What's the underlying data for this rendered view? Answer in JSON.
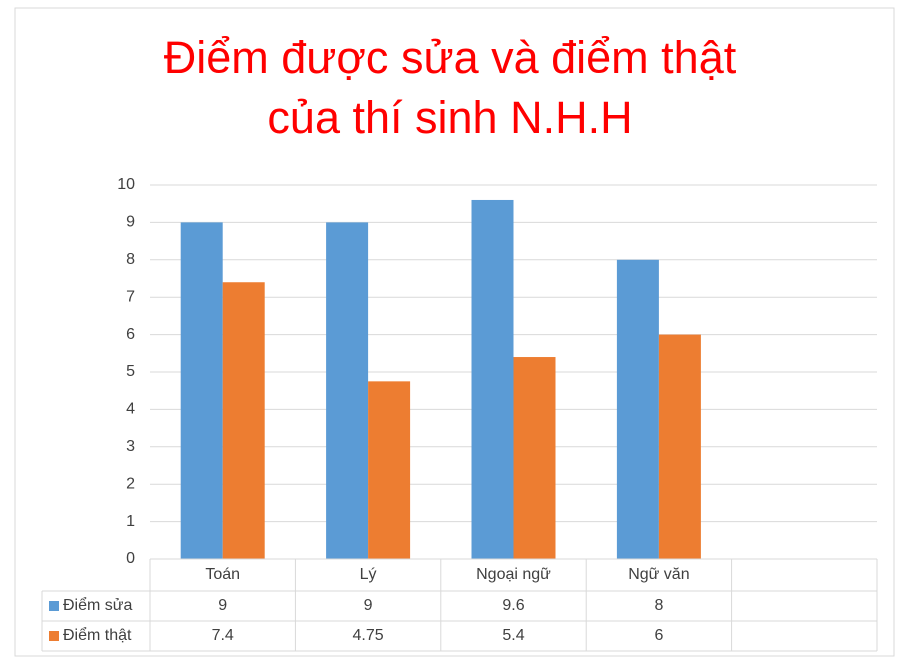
{
  "chart_data": {
    "type": "bar",
    "title": "Điểm được sửa và điểm thật của thí sinh N.H.H",
    "categories": [
      "Toán",
      "Lý",
      "Ngoại ngữ",
      "Ngữ văn",
      null
    ],
    "series": [
      {
        "name": "Điểm sửa",
        "color": "#5b9bd5",
        "values": [
          9,
          9,
          9.6,
          8,
          null
        ]
      },
      {
        "name": "Điểm thật",
        "color": "#ed7d31",
        "values": [
          7.4,
          4.75,
          5.4,
          6,
          null
        ]
      }
    ],
    "ylim": [
      0,
      10
    ],
    "yticks": [
      0,
      1,
      2,
      3,
      4,
      5,
      6,
      7,
      8,
      9,
      10
    ],
    "grid": true,
    "data_table": true
  }
}
